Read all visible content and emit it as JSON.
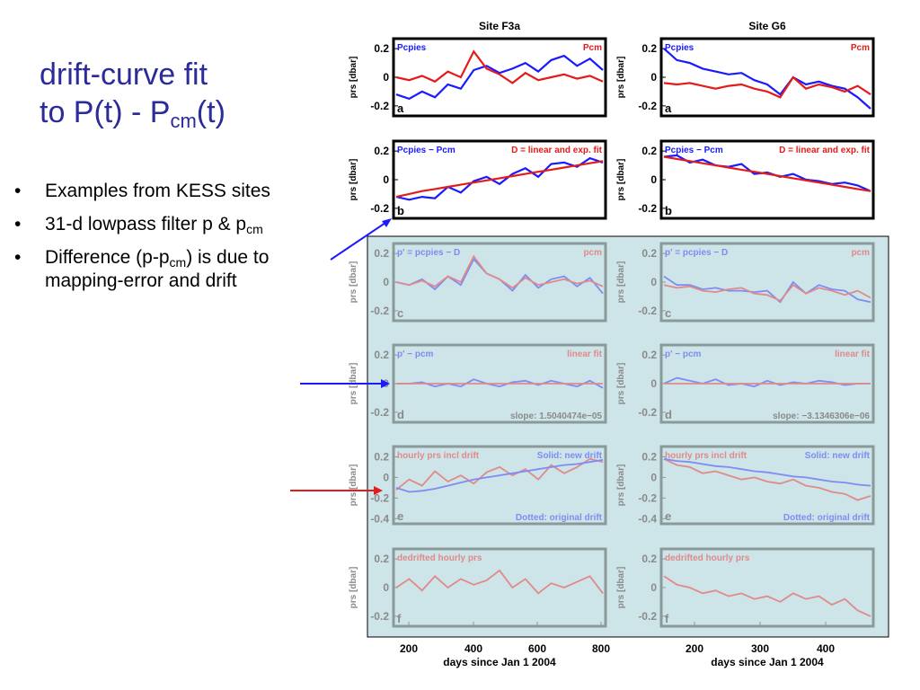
{
  "title": {
    "line1": "drift-curve fit",
    "line2a": "to P(t) - P",
    "line2sub": "cm",
    "line2b": "(t)"
  },
  "bullets": [
    {
      "text": "Examples from KESS sites"
    },
    {
      "pre": "31-d lowpass filter p & p",
      "sub": "cm",
      "post": ""
    },
    {
      "pre": "Difference (p-p",
      "sub": "cm",
      "post": ") is due to mapping-error and drift"
    }
  ],
  "colors": {
    "title": "#2b2b9a",
    "blue": "#1a1aff",
    "red": "#e41b1b",
    "panel_bg": "#cde4e8",
    "pale_blue": "#7f8cf2",
    "pale_red": "#e08a8a"
  },
  "chart_data": [
    {
      "type": "line",
      "title": "Site F3a",
      "ylabel": "prs [dbar]",
      "xlabel": "days since Jan 1 2004",
      "xticks": [
        "200",
        "400",
        "600",
        "800"
      ],
      "panels": [
        {
          "letter": "a",
          "yticks": [
            "0.2",
            "0",
            "-0.2"
          ],
          "label_left": "Pcpies",
          "label_right": "Pcm",
          "series": [
            {
              "name": "Pcpies",
              "color": "blue",
              "values": [
                -0.12,
                -0.15,
                -0.1,
                -0.14,
                -0.05,
                -0.08,
                0.05,
                0.08,
                0.03,
                0.06,
                0.1,
                0.04,
                0.12,
                0.15,
                0.08,
                0.13,
                0.05
              ]
            },
            {
              "name": "Pcm",
              "color": "red",
              "values": [
                0.0,
                -0.02,
                0.01,
                -0.03,
                0.04,
                0.0,
                0.18,
                0.06,
                0.02,
                -0.04,
                0.03,
                -0.02,
                0.0,
                0.02,
                -0.01,
                0.01,
                -0.03
              ]
            }
          ]
        },
        {
          "letter": "b",
          "yticks": [
            "0.2",
            "0",
            "-0.2"
          ],
          "label_left": "Pcpies − Pcm",
          "label_right": "D = linear and exp. fit",
          "series": [
            {
              "name": "Pcpies − Pcm",
              "color": "blue",
              "values": [
                -0.12,
                -0.14,
                -0.12,
                -0.13,
                -0.05,
                -0.09,
                -0.01,
                0.02,
                -0.03,
                0.04,
                0.08,
                0.02,
                0.11,
                0.12,
                0.09,
                0.15,
                0.12
              ]
            },
            {
              "name": "D = linear and exp. fit",
              "color": "red",
              "values": [
                -0.12,
                -0.1,
                -0.08,
                -0.065,
                -0.05,
                -0.035,
                -0.02,
                -0.005,
                0.01,
                0.025,
                0.04,
                0.055,
                0.07,
                0.085,
                0.1,
                0.115,
                0.13
              ]
            }
          ]
        },
        {
          "letter": "c",
          "yticks": [
            "0.2",
            "0",
            "-0.2"
          ],
          "label_left": "p' = pcpies − D",
          "label_right": "pcm",
          "series": [
            {
              "name": "p' = pcpies − D",
              "color": "pale_blue",
              "values": [
                0.0,
                -0.02,
                0.02,
                -0.05,
                0.04,
                -0.02,
                0.16,
                0.06,
                0.02,
                -0.06,
                0.05,
                -0.04,
                0.02,
                0.04,
                -0.03,
                0.03,
                -0.08
              ]
            },
            {
              "name": "pcm",
              "color": "pale_red",
              "values": [
                0.0,
                -0.02,
                0.01,
                -0.03,
                0.04,
                0.0,
                0.18,
                0.06,
                0.02,
                -0.04,
                0.03,
                -0.02,
                0.0,
                0.02,
                -0.01,
                0.01,
                -0.03
              ]
            }
          ]
        },
        {
          "letter": "d",
          "yticks": [
            "0.2",
            "0",
            "-0.2"
          ],
          "label_left": "p' − pcm",
          "label_right": "linear fit",
          "annotation": "slope: 1.5040474e−05",
          "series": [
            {
              "name": "p' − pcm",
              "color": "pale_blue",
              "values": [
                0.0,
                0.0,
                0.01,
                -0.02,
                0.0,
                -0.02,
                0.03,
                0.0,
                -0.02,
                0.01,
                0.02,
                -0.01,
                0.02,
                0.0,
                -0.02,
                0.02,
                -0.03
              ]
            },
            {
              "name": "linear fit",
              "color": "pale_red",
              "values": [
                0.0,
                0.0,
                0.0,
                0.0,
                0.0,
                0.0,
                0.0,
                0.0,
                0.0,
                0.0,
                0.0,
                0.0,
                0.0,
                0.0,
                0.0,
                0.0,
                0.0
              ]
            }
          ]
        },
        {
          "letter": "e",
          "yticks": [
            "0.2",
            "0",
            "-0.2",
            "-0.4"
          ],
          "label_left": "hourly prs incl drift",
          "label_right": "Solid: new drift",
          "annotation": "Dotted: original drift",
          "series": [
            {
              "name": "hourly prs incl drift",
              "color": "pale_red",
              "values": [
                -0.12,
                -0.02,
                -0.08,
                0.06,
                -0.04,
                0.02,
                -0.06,
                0.05,
                0.1,
                0.02,
                0.08,
                -0.02,
                0.12,
                0.04,
                0.1,
                0.18,
                0.15
              ]
            },
            {
              "name": "new drift",
              "color": "pale_blue",
              "values": [
                -0.1,
                -0.14,
                -0.13,
                -0.11,
                -0.08,
                -0.05,
                -0.02,
                0.0,
                0.02,
                0.04,
                0.06,
                0.08,
                0.1,
                0.12,
                0.13,
                0.15,
                0.17
              ]
            }
          ]
        },
        {
          "letter": "f",
          "yticks": [
            "0.2",
            "0",
            "-0.2"
          ],
          "label_left": "dedrifted hourly prs",
          "series": [
            {
              "name": "dedrifted hourly prs",
              "color": "pale_red",
              "values": [
                0.0,
                0.06,
                -0.02,
                0.08,
                0.0,
                0.06,
                0.02,
                0.05,
                0.12,
                0.0,
                0.06,
                -0.04,
                0.03,
                0.0,
                0.04,
                0.08,
                -0.04
              ]
            }
          ]
        }
      ]
    },
    {
      "type": "line",
      "title": "Site G6",
      "ylabel": "prs [dbar]",
      "xlabel": "days since Jan 1 2004",
      "xticks": [
        "200",
        "300",
        "400"
      ],
      "panels": [
        {
          "letter": "a",
          "yticks": [
            "0.2",
            "0",
            "-0.2"
          ],
          "label_left": "Pcpies",
          "label_right": "Pcm",
          "series": [
            {
              "name": "Pcpies",
              "color": "blue",
              "values": [
                0.2,
                0.12,
                0.1,
                0.06,
                0.04,
                0.02,
                0.03,
                -0.02,
                -0.05,
                -0.12,
                0.0,
                -0.05,
                -0.03,
                -0.06,
                -0.08,
                -0.14,
                -0.22
              ]
            },
            {
              "name": "Pcm",
              "color": "red",
              "values": [
                -0.04,
                -0.05,
                -0.04,
                -0.06,
                -0.08,
                -0.06,
                -0.05,
                -0.08,
                -0.1,
                -0.14,
                0.0,
                -0.08,
                -0.05,
                -0.07,
                -0.1,
                -0.06,
                -0.12
              ]
            }
          ]
        },
        {
          "letter": "b",
          "yticks": [
            "0.2",
            "0",
            "-0.2"
          ],
          "label_left": "Pcpies − Pcm",
          "label_right": "D = linear and exp. fit",
          "series": [
            {
              "name": "Pcpies − Pcm",
              "color": "blue",
              "values": [
                0.16,
                0.17,
                0.12,
                0.14,
                0.1,
                0.09,
                0.11,
                0.04,
                0.05,
                0.02,
                0.04,
                0.0,
                -0.01,
                -0.03,
                -0.02,
                -0.04,
                -0.08
              ]
            },
            {
              "name": "D = linear and exp. fit",
              "color": "red",
              "values": [
                0.16,
                0.145,
                0.13,
                0.115,
                0.1,
                0.085,
                0.07,
                0.055,
                0.04,
                0.025,
                0.01,
                -0.005,
                -0.02,
                -0.035,
                -0.05,
                -0.065,
                -0.08
              ]
            }
          ]
        },
        {
          "letter": "c",
          "yticks": [
            "0.2",
            "0",
            "-0.2"
          ],
          "label_left": "p' = pcpies − D",
          "label_right": "pcm",
          "series": [
            {
              "name": "p' = pcpies − D",
              "color": "pale_blue",
              "values": [
                0.04,
                -0.02,
                -0.02,
                -0.05,
                -0.04,
                -0.06,
                -0.06,
                -0.07,
                -0.06,
                -0.14,
                0.0,
                -0.08,
                -0.02,
                -0.05,
                -0.06,
                -0.12,
                -0.14
              ]
            },
            {
              "name": "pcm",
              "color": "pale_red",
              "values": [
                -0.02,
                -0.04,
                -0.03,
                -0.06,
                -0.07,
                -0.05,
                -0.04,
                -0.08,
                -0.09,
                -0.13,
                -0.02,
                -0.08,
                -0.04,
                -0.06,
                -0.09,
                -0.06,
                -0.11
              ]
            }
          ]
        },
        {
          "letter": "d",
          "yticks": [
            "0.2",
            "0",
            "-0.2"
          ],
          "label_left": "p' − pcm",
          "label_right": "linear fit",
          "annotation": "slope: −3.1346306e−06",
          "series": [
            {
              "name": "p' − pcm",
              "color": "pale_blue",
              "values": [
                0.0,
                0.04,
                0.02,
                0.0,
                0.03,
                -0.01,
                0.0,
                -0.02,
                0.02,
                -0.01,
                0.01,
                0.0,
                0.02,
                0.01,
                -0.01,
                0.0,
                0.0
              ]
            },
            {
              "name": "linear fit",
              "color": "pale_red",
              "values": [
                0.0,
                0.0,
                0.0,
                0.0,
                0.0,
                0.0,
                0.0,
                0.0,
                0.0,
                0.0,
                0.0,
                0.0,
                0.0,
                0.0,
                0.0,
                0.0,
                0.0
              ]
            }
          ]
        },
        {
          "letter": "e",
          "yticks": [
            "0.2",
            "0",
            "-0.2",
            "-0.4"
          ],
          "label_left": "hourly prs incl drift",
          "label_right": "Solid: new drift",
          "annotation": "Dotted: original drift",
          "series": [
            {
              "name": "hourly prs incl drift",
              "color": "pale_red",
              "values": [
                0.18,
                0.12,
                0.1,
                0.04,
                0.06,
                0.02,
                -0.02,
                0.0,
                -0.04,
                -0.06,
                -0.02,
                -0.08,
                -0.1,
                -0.14,
                -0.16,
                -0.22,
                -0.18
              ]
            },
            {
              "name": "new drift",
              "color": "pale_blue",
              "values": [
                0.18,
                0.16,
                0.15,
                0.13,
                0.11,
                0.1,
                0.08,
                0.06,
                0.05,
                0.03,
                0.01,
                0.0,
                -0.02,
                -0.04,
                -0.05,
                -0.07,
                -0.08
              ]
            }
          ]
        },
        {
          "letter": "f",
          "yticks": [
            "0.2",
            "0",
            "-0.2"
          ],
          "label_left": "dedrifted hourly prs",
          "series": [
            {
              "name": "dedrifted hourly prs",
              "color": "pale_red",
              "values": [
                0.08,
                0.02,
                0.0,
                -0.04,
                -0.02,
                -0.06,
                -0.04,
                -0.08,
                -0.06,
                -0.1,
                -0.04,
                -0.08,
                -0.06,
                -0.12,
                -0.08,
                -0.16,
                -0.2
              ]
            }
          ]
        }
      ]
    }
  ]
}
